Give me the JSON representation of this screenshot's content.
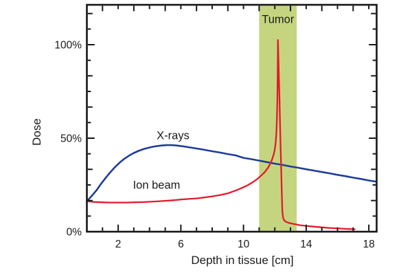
{
  "chart_data": {
    "type": "line",
    "title": "",
    "xlabel": "Depth in tissue [cm]",
    "ylabel": "Dose",
    "x_unit": "cm",
    "y_unit": "percent",
    "x_range": [
      0,
      18.5
    ],
    "y_range_pct": [
      0,
      121
    ],
    "grid": false,
    "legend_position": "inline-labels",
    "x_tick_labels": [
      {
        "value": 2,
        "label": "2"
      },
      {
        "value": 6,
        "label": "6"
      },
      {
        "value": 10,
        "label": "10"
      },
      {
        "value": 14,
        "label": "14"
      },
      {
        "value": 18,
        "label": "18"
      }
    ],
    "x_minor_tick_step_cm": 1,
    "y_tick_labels": [
      {
        "pct": 0,
        "label": "0%"
      },
      {
        "pct": 50,
        "label": "50%"
      },
      {
        "pct": 100,
        "label": "100%"
      }
    ],
    "y_minor_tick_step_pct": 8.3333,
    "tumor_band": {
      "label": "Tumor",
      "from_cm": 11.0,
      "to_cm": 13.4,
      "color": "#c5d57f",
      "label_pct_y": 111.5
    },
    "series": [
      {
        "name": "X-rays",
        "color": "#1e3d99",
        "stroke_width": 2.6,
        "label": {
          "text": "X-rays",
          "depth_cm": 5.5,
          "pct": 49.5
        },
        "points": [
          [
            0,
            16.3
          ],
          [
            0.3,
            19.0
          ],
          [
            0.6,
            22.0
          ],
          [
            0.9,
            25.5
          ],
          [
            1.2,
            28.8
          ],
          [
            1.5,
            31.8
          ],
          [
            1.8,
            34.6
          ],
          [
            2.1,
            37.0
          ],
          [
            2.4,
            39.0
          ],
          [
            2.7,
            40.7
          ],
          [
            3.0,
            42.1
          ],
          [
            3.3,
            43.2
          ],
          [
            3.6,
            44.1
          ],
          [
            3.9,
            44.8
          ],
          [
            4.2,
            45.4
          ],
          [
            4.5,
            45.8
          ],
          [
            4.8,
            46.1
          ],
          [
            5.1,
            46.3
          ],
          [
            5.4,
            46.3
          ],
          [
            5.7,
            46.1
          ],
          [
            6.0,
            45.8
          ],
          [
            6.5,
            45.2
          ],
          [
            7.0,
            44.5
          ],
          [
            7.5,
            43.8
          ],
          [
            8.0,
            43.0
          ],
          [
            8.5,
            42.3
          ],
          [
            9.0,
            41.5
          ],
          [
            9.5,
            40.8
          ],
          [
            10,
            39.5
          ],
          [
            10.5,
            38.8
          ],
          [
            11,
            38.0
          ],
          [
            11.5,
            37.2
          ],
          [
            12,
            36.4
          ],
          [
            12.5,
            35.7
          ],
          [
            13,
            34.9
          ],
          [
            13.5,
            34.2
          ],
          [
            14,
            33.4
          ],
          [
            14.5,
            32.7
          ],
          [
            15,
            31.9
          ],
          [
            15.5,
            31.2
          ],
          [
            16,
            30.4
          ],
          [
            16.5,
            29.7
          ],
          [
            17,
            28.9
          ],
          [
            17.5,
            28.2
          ],
          [
            18,
            27.4
          ],
          [
            18.45,
            26.8
          ]
        ]
      },
      {
        "name": "Ion beam",
        "color": "#e4192b",
        "stroke_width": 2.3,
        "label": {
          "text": "Ion beam",
          "depth_cm": 4.45,
          "pct": 23.0
        },
        "points": [
          [
            0,
            16.3
          ],
          [
            0.5,
            15.9
          ],
          [
            1,
            15.7
          ],
          [
            1.5,
            15.6
          ],
          [
            2,
            15.6
          ],
          [
            2.5,
            15.6
          ],
          [
            3,
            15.7
          ],
          [
            3.5,
            15.8
          ],
          [
            4,
            16.0
          ],
          [
            4.5,
            16.2
          ],
          [
            5,
            16.5
          ],
          [
            5.5,
            16.8
          ],
          [
            6,
            17.2
          ],
          [
            6.5,
            17.5
          ],
          [
            7,
            17.8
          ],
          [
            7.5,
            18.3
          ],
          [
            8,
            18.9
          ],
          [
            8.5,
            19.6
          ],
          [
            9,
            20.5
          ],
          [
            9.5,
            22.0
          ],
          [
            10,
            23.8
          ],
          [
            10.3,
            25.0
          ],
          [
            10.6,
            26.5
          ],
          [
            10.9,
            28.3
          ],
          [
            11.1,
            29.8
          ],
          [
            11.35,
            31.8
          ],
          [
            11.55,
            34.0
          ],
          [
            11.7,
            36.2
          ],
          [
            11.82,
            38.5
          ],
          [
            11.92,
            41.0
          ],
          [
            12.0,
            44.0
          ],
          [
            12.06,
            48.0
          ],
          [
            12.1,
            53.0
          ],
          [
            12.13,
            60.0
          ],
          [
            12.16,
            70.0
          ],
          [
            12.18,
            82.0
          ],
          [
            12.2,
            102.5
          ],
          [
            12.23,
            92.0
          ],
          [
            12.26,
            82.0
          ],
          [
            12.3,
            70.0
          ],
          [
            12.33,
            58.0
          ],
          [
            12.37,
            45.0
          ],
          [
            12.41,
            32.0
          ],
          [
            12.45,
            19.0
          ],
          [
            12.48,
            11.0
          ],
          [
            12.52,
            7.8
          ],
          [
            12.58,
            6.3
          ],
          [
            12.7,
            5.3
          ],
          [
            12.9,
            4.7
          ],
          [
            13.2,
            4.1
          ],
          [
            13.6,
            3.5
          ],
          [
            14,
            3.1
          ],
          [
            14.5,
            2.7
          ],
          [
            15,
            2.3
          ],
          [
            15.5,
            2.0
          ],
          [
            16,
            1.8
          ],
          [
            16.5,
            1.5
          ],
          [
            17.1,
            1.3
          ]
        ]
      }
    ],
    "bragg_peak": {
      "depth_cm": 12.2,
      "dose_pct": 102.5
    }
  }
}
